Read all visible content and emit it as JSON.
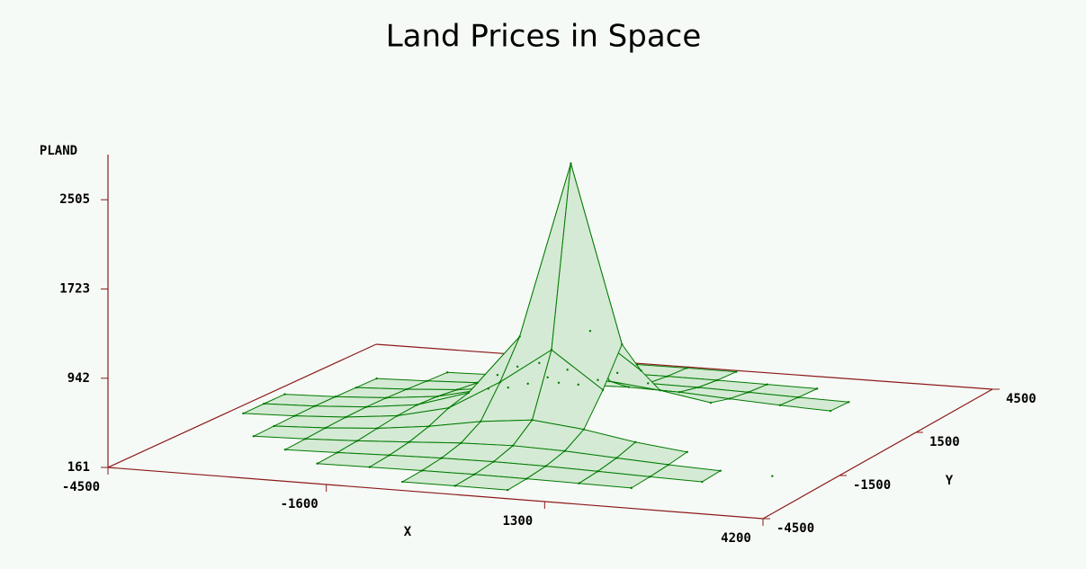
{
  "chart_data": {
    "type": "surface",
    "title": "Land Prices in Space",
    "x_label": "X",
    "y_label": "Y",
    "z_label": "PLAND",
    "x": [
      -4200,
      -3500,
      -2800,
      -2100,
      -1400,
      -700,
      0,
      700,
      1400,
      2100,
      2800,
      3500,
      4200
    ],
    "y": [
      -4200,
      -3500,
      -2800,
      -2100,
      -1400,
      -700,
      0,
      700,
      1400,
      2100,
      2800,
      3500,
      4200
    ],
    "z": [
      [
        null,
        null,
        null,
        null,
        null,
        194,
        195,
        194,
        null,
        null,
        null,
        null,
        null
      ],
      [
        null,
        null,
        null,
        197,
        202,
        207,
        209,
        207,
        202,
        197,
        null,
        null,
        null
      ],
      [
        null,
        null,
        199,
        209,
        221,
        231,
        235,
        231,
        221,
        209,
        199,
        null,
        null
      ],
      [
        null,
        197,
        209,
        227,
        252,
        278,
        290,
        278,
        252,
        227,
        209,
        197,
        null
      ],
      [
        null,
        202,
        221,
        252,
        305,
        383,
        432,
        383,
        305,
        252,
        null,
        null,
        null
      ],
      [
        194,
        207,
        231,
        278,
        383,
        649,
        972,
        649,
        null,
        null,
        null,
        null,
        null
      ],
      [
        195,
        209,
        235,
        290,
        432,
        972,
        2561,
        972,
        null,
        null,
        null,
        null,
        null
      ],
      [
        194,
        207,
        231,
        278,
        383,
        649,
        972,
        649,
        null,
        null,
        null,
        null,
        null
      ],
      [
        null,
        202,
        221,
        252,
        305,
        383,
        432,
        383,
        305,
        null,
        null,
        null,
        null
      ],
      [
        null,
        197,
        209,
        227,
        252,
        278,
        290,
        278,
        252,
        227,
        209,
        null,
        null
      ],
      [
        null,
        null,
        199,
        209,
        221,
        231,
        235,
        231,
        221,
        209,
        199,
        null,
        null
      ],
      [
        null,
        null,
        null,
        197,
        202,
        207,
        209,
        207,
        202,
        197,
        null,
        null,
        null
      ],
      [
        null,
        null,
        null,
        null,
        null,
        194,
        195,
        194,
        null,
        null,
        null,
        null,
        null
      ]
    ],
    "xlim": [
      -4500,
      4200
    ],
    "ylim": [
      -4500,
      4500
    ],
    "zlim": [
      161,
      2900
    ],
    "xticks": [
      -4500,
      -1600,
      1300,
      4200
    ],
    "yticks": [
      -4500,
      -1500,
      1500,
      4500
    ],
    "zticks": [
      161,
      942,
      1723,
      2505
    ],
    "color": "#007a00",
    "axis_color": "#8b1a1a"
  }
}
